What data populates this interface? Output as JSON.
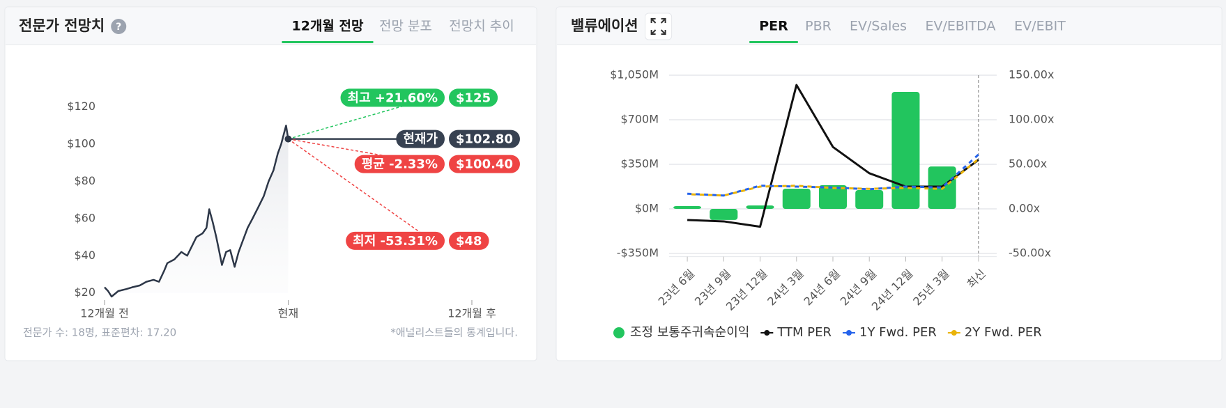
{
  "panels": [
    {
      "title": "전문가 전망치",
      "help": "?",
      "tabs": [
        "12개월 전망",
        "전망 분포",
        "전망치 추이"
      ],
      "active_tab": 0,
      "footer_left": "전문가 수: 18명, 표준편차: 17.20",
      "footer_right": "*애널리스트들의 통계입니다."
    },
    {
      "title": "밸류에이션",
      "tabs": [
        "PER",
        "PBR",
        "EV/Sales",
        "EV/EBITDA",
        "EV/EBIT"
      ],
      "active_tab": 0
    }
  ],
  "chart_data": [
    {
      "type": "line",
      "x": [
        -12,
        -11.77,
        -11.54,
        -11.1,
        -10.6,
        -10.2,
        -9.7,
        -9.26,
        -8.8,
        -8.44,
        -8.1,
        -7.9,
        -7.44,
        -6.98,
        -6.6,
        -6.3,
        -6.0,
        -5.6,
        -5.34,
        -5.16,
        -4.93,
        -4.7,
        -4.5,
        -4.33,
        -4.06,
        -3.79,
        -3.5,
        -3.24,
        -2.97,
        -2.65,
        -2.33,
        -1.96,
        -1.6,
        -1.28,
        -0.96,
        -0.68,
        -0.46,
        -0.27,
        -0.14,
        0
      ],
      "series": [
        {
          "color": "#2d3748",
          "values": [
            23,
            21,
            18,
            21,
            22,
            23,
            24,
            26,
            27,
            26,
            32,
            36,
            38,
            42,
            40,
            45,
            50,
            52,
            55,
            65,
            58,
            50,
            42,
            35,
            42,
            43,
            34,
            42,
            48,
            55,
            60,
            66,
            72,
            80,
            86,
            95,
            100,
            106,
            110,
            102.8
          ]
        }
      ],
      "xlim": [
        -12,
        12
      ],
      "xticks": [
        {
          "value": -12,
          "label": "12개월 전"
        },
        {
          "value": 0,
          "label": "현재"
        },
        {
          "value": 12,
          "label": "12개월 후"
        }
      ],
      "ylim": [
        15,
        127
      ],
      "yticks": [
        {
          "value": 20,
          "label": "$20"
        },
        {
          "value": 40,
          "label": "$40"
        },
        {
          "value": 60,
          "label": "$60"
        },
        {
          "value": 80,
          "label": "$80"
        },
        {
          "value": 100,
          "label": "$100"
        },
        {
          "value": 120,
          "label": "$120"
        }
      ],
      "targets": {
        "names": [
          "최고 +21.60%",
          "현재가",
          "평균 -2.33%",
          "최저 -53.31%"
        ],
        "values": [
          125,
          102.8,
          100.4,
          48
        ],
        "value_labels": [
          "$125",
          "$102.80",
          "$100.40",
          "$48"
        ],
        "colors": [
          "#22c55e",
          "#374151",
          "#ef4444",
          "#ef4444"
        ]
      }
    },
    {
      "type": "bar_line",
      "categories": [
        "23년 6월",
        "23년 9월",
        "23년 12월",
        "24년 3월",
        "24년 6월",
        "24년 9월",
        "24년 12월",
        "25년 3월",
        "최신"
      ],
      "series": [
        {
          "name": "조정 보통주귀속순이익",
          "type": "bar",
          "color": "#22c55e",
          "values": [
            22,
            -87,
            27,
            159,
            186,
            148,
            919,
            333,
            null
          ]
        },
        {
          "name": "TTM PER",
          "type": "line",
          "axis": "y2",
          "color": "#111111",
          "values": [
            -12.5,
            -14,
            -20,
            139,
            69.5,
            40,
            25,
            25,
            55
          ]
        },
        {
          "name": "1Y Fwd. PER",
          "type": "line",
          "axis": "y2",
          "color": "#2563eb",
          "values": [
            17,
            15,
            26,
            25,
            24,
            22,
            25,
            24,
            61
          ]
        },
        {
          "name": "2Y Fwd. PER",
          "type": "line",
          "axis": "y2",
          "color": "#eab308",
          "values": [
            16.5,
            15,
            25,
            26,
            23.5,
            22.5,
            23.5,
            22.5,
            56
          ]
        }
      ],
      "ylim": [
        -375,
        1050
      ],
      "yticks": [
        {
          "value": -350,
          "label": "-$350M"
        },
        {
          "value": 0,
          "label": "$0M"
        },
        {
          "value": 350,
          "label": "$350M"
        },
        {
          "value": 700,
          "label": "$700M"
        },
        {
          "value": 1050,
          "label": "$1,050M"
        }
      ],
      "y2lim": [
        -53.57,
        150
      ],
      "y2ticks": [
        {
          "value": -50,
          "label": "-50.00x"
        },
        {
          "value": 0,
          "label": "0.00x"
        },
        {
          "value": 50,
          "label": "50.00x"
        },
        {
          "value": 100,
          "label": "100.00x"
        },
        {
          "value": 150,
          "label": "150.00x"
        }
      ],
      "grid": true,
      "legend": "bottom"
    }
  ]
}
